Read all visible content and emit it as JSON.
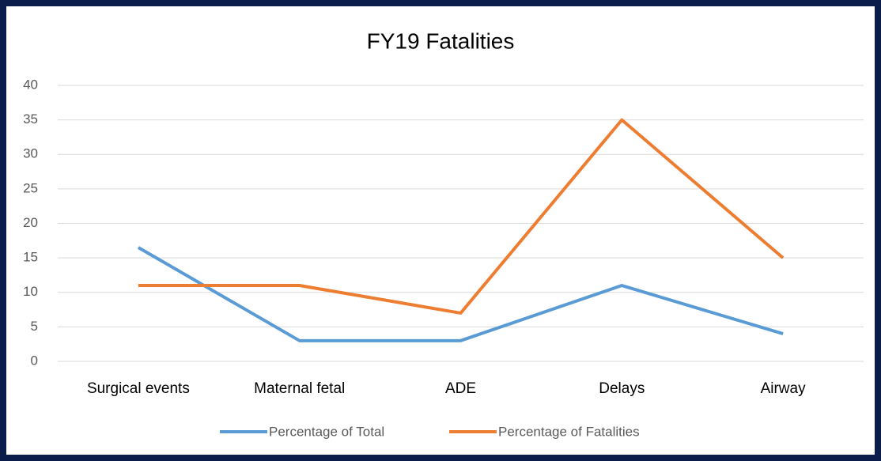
{
  "chart_data": {
    "type": "line",
    "title": "FY19 Fatalities",
    "categories": [
      "Surgical events",
      "Maternal fetal",
      "ADE",
      "Delays",
      "Airway"
    ],
    "series": [
      {
        "name": "Percentage of Total",
        "color": "#5b9bd5",
        "values": [
          16.5,
          3,
          3,
          11,
          4
        ]
      },
      {
        "name": "Percentage of Fatalities",
        "color": "#ed7d31",
        "values": [
          11,
          11,
          7,
          35,
          15
        ]
      }
    ],
    "ylim": [
      0,
      40
    ],
    "yticks": [
      0,
      5,
      10,
      15,
      20,
      25,
      30,
      35,
      40
    ],
    "grid": true,
    "legend": "bottom"
  }
}
